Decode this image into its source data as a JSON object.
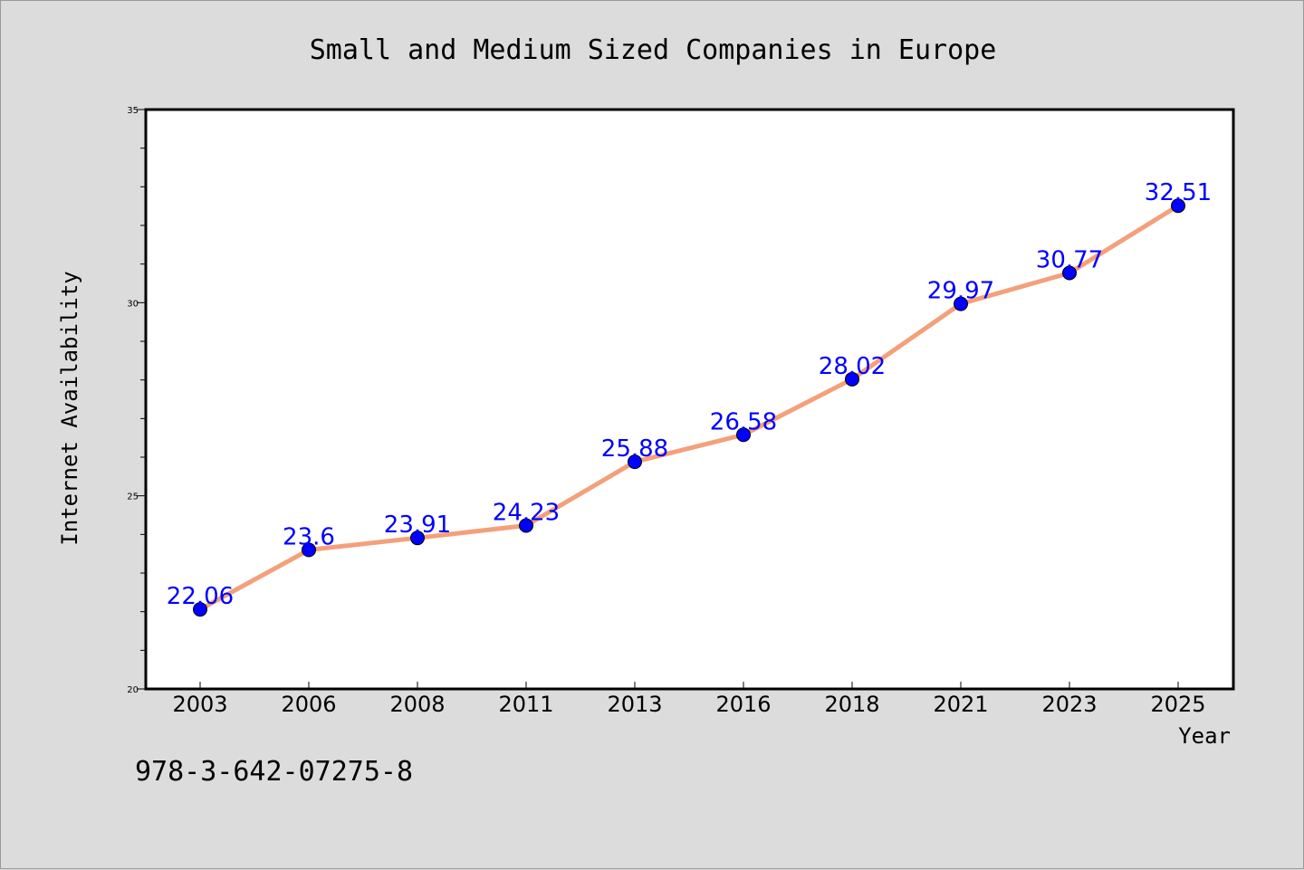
{
  "chart_data": {
    "type": "line",
    "title": "Small and Medium Sized Companies in Europe",
    "xlabel": "Year",
    "ylabel": "Internet Availability",
    "categories": [
      "2003",
      "2006",
      "2008",
      "2011",
      "2013",
      "2016",
      "2018",
      "2021",
      "2023",
      "2025"
    ],
    "series": [
      {
        "values": [
          22.06,
          23.6,
          23.91,
          24.23,
          25.88,
          26.58,
          28.02,
          29.97,
          30.77,
          32.51
        ],
        "data_labels": [
          "22.06",
          "23.6",
          "23.91",
          "24.23",
          "25.88",
          "26.58",
          "28.02",
          "29.97",
          "30.77",
          "32.51"
        ],
        "line_color": "#f4a07a",
        "marker_color": "#0000ff"
      }
    ],
    "yticks": [
      "20",
      "25",
      "30",
      "35"
    ],
    "ylim": [
      20,
      35
    ],
    "grid": false,
    "legend": "none"
  },
  "isbn": "978-3-642-07275-8",
  "colors": {
    "background": "#dcdcdc",
    "plot_background": "#ffffff",
    "line": "#f4a07a",
    "marker": "#0000ff",
    "data_label": "#0000ff"
  }
}
